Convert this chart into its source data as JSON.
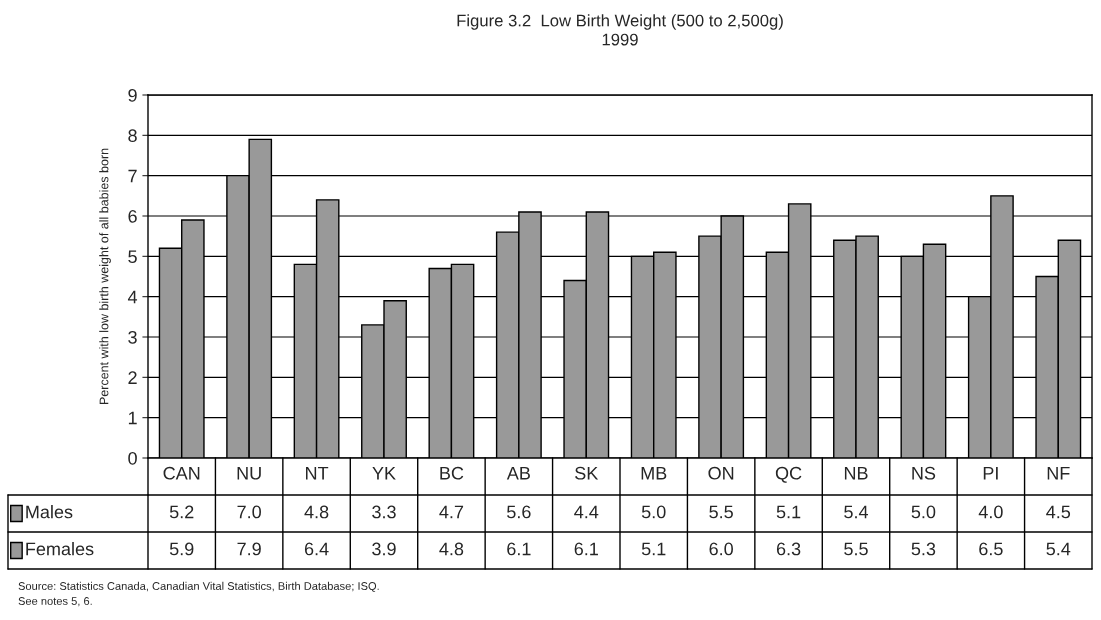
{
  "chart_data": {
    "type": "bar",
    "title": "Figure 3.2  Low Birth Weight (500 to 2,500g)",
    "subtitle": "1999",
    "ylabel": "Percent with low birth weight of all babies born",
    "categories": [
      "CAN",
      "NU",
      "NT",
      "YK",
      "BC",
      "AB",
      "SK",
      "MB",
      "ON",
      "QC",
      "NB",
      "NS",
      "PI",
      "NF"
    ],
    "series": [
      {
        "name": "Males",
        "color": "#999999",
        "values": [
          5.2,
          7.0,
          4.8,
          3.3,
          4.7,
          5.6,
          4.4,
          5.0,
          5.5,
          5.1,
          5.4,
          5.0,
          4.0,
          4.5
        ],
        "value_labels": [
          "5.2",
          "7.0",
          "4.8",
          "3.3",
          "4.7",
          "5.6",
          "4.4",
          "5.0",
          "5.5",
          "5.1",
          "5.4",
          "5.0",
          "4.0",
          "4.5"
        ]
      },
      {
        "name": "Females",
        "color": "#999999",
        "values": [
          5.9,
          7.9,
          6.4,
          3.9,
          4.8,
          6.1,
          6.1,
          5.1,
          6.0,
          6.3,
          5.5,
          5.3,
          6.5,
          5.4
        ],
        "value_labels": [
          "5.9",
          "7.9",
          "6.4",
          "3.9",
          "4.8",
          "6.1",
          "6.1",
          "5.1",
          "6.0",
          "6.3",
          "5.5",
          "5.3",
          "6.5",
          "5.4"
        ]
      }
    ],
    "ylim": [
      0,
      9
    ],
    "yticks": [
      0,
      1,
      2,
      3,
      4,
      5,
      6,
      7,
      8,
      9
    ],
    "grid": "y",
    "legend": "bottom left",
    "annotations": [
      "Source: Statistics Canada, Canadian Vital Statistics, Birth Database; ISQ.",
      "See notes 5, 6."
    ]
  }
}
